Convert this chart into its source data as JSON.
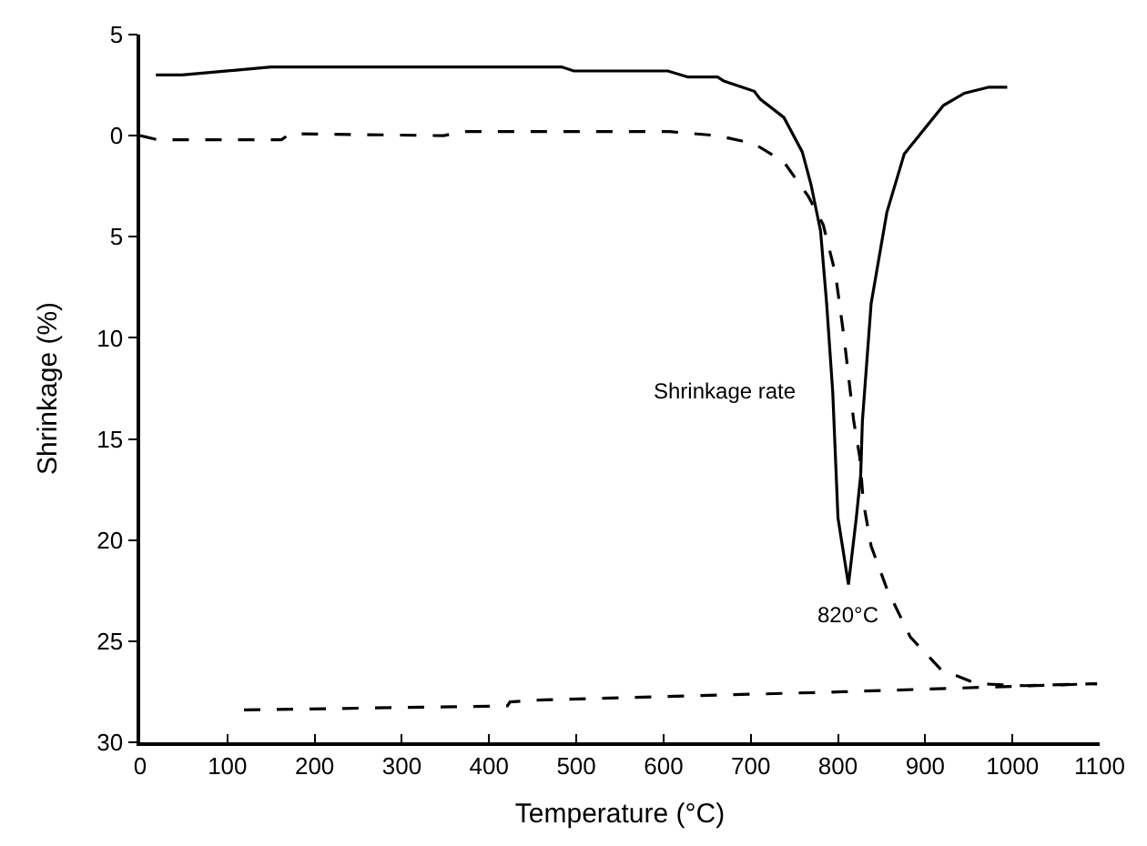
{
  "chart_data": {
    "type": "line",
    "xlabel": "Temperature (°C)",
    "ylabel": "Shrinkage (%)",
    "xlim": [
      0,
      1100
    ],
    "xticks": [
      0,
      100,
      200,
      300,
      400,
      500,
      600,
      700,
      800,
      900,
      1000,
      1100
    ],
    "ylim": [
      30,
      -5
    ],
    "yticks": [
      {
        "value": -5,
        "label": "5"
      },
      0,
      5,
      10,
      15,
      20,
      25,
      30
    ],
    "marker": "none",
    "series": [
      {
        "color": "#000000",
        "line_style": "solid",
        "x": [
          18,
          48,
          150,
          483,
          497,
          605,
          628,
          662,
          669,
          704,
          711,
          738,
          759,
          769,
          780,
          787,
          794,
          800,
          812,
          821,
          826,
          828,
          838,
          856,
          876,
          921,
          945,
          973,
          994
        ],
        "values": [
          -3.0,
          -3.0,
          -3.4,
          -3.4,
          -3.2,
          -3.2,
          -2.9,
          -2.9,
          -2.7,
          -2.2,
          -1.8,
          -0.9,
          0.8,
          2.4,
          4.7,
          8.3,
          12.7,
          18.9,
          22.2,
          18.9,
          16.8,
          14.1,
          8.3,
          3.8,
          0.9,
          -1.5,
          -2.1,
          -2.4,
          -2.4
        ]
      },
      {
        "color": "#000000",
        "line_style": "dashed",
        "x": [
          0,
          20,
          162,
          172,
          348,
          369,
          483,
          607,
          662,
          704,
          738,
          766,
          783,
          797,
          807,
          818,
          825,
          829,
          838,
          856,
          883,
          918,
          959,
          1014,
          1097
        ],
        "values": [
          0,
          0.2,
          0.2,
          -0.1,
          0,
          -0.2,
          -0.2,
          -0.2,
          0,
          0.4,
          1.3,
          3.0,
          4.4,
          6.8,
          10.0,
          14.1,
          15.9,
          18.1,
          20.3,
          22.4,
          24.8,
          26.4,
          27.1,
          27.2,
          27.1
        ]
      },
      {
        "color": "#000000",
        "line_style": "dashed",
        "x": [
          119,
          421,
          424,
          462,
          807,
          1097
        ],
        "values": [
          28.4,
          28.2,
          28.0,
          27.9,
          27.5,
          27.1
        ]
      }
    ],
    "annotations": [
      "Shrinkage rate",
      {
        "text": "820°C",
        "x": 812,
        "y": 22.2
      }
    ]
  }
}
